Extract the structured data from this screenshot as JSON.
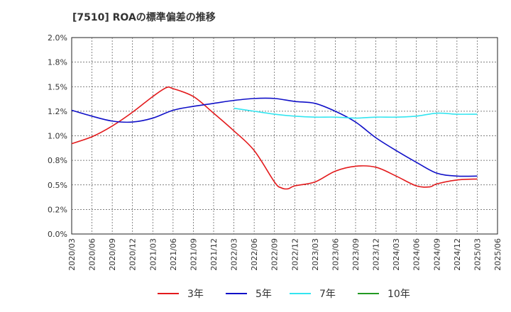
{
  "chart_data": {
    "type": "line",
    "title": "[7510]  ROAの標準偏差の推移",
    "xlabel": "",
    "ylabel": "",
    "ylim": [
      0.0,
      2.0
    ],
    "y_ticks": [
      "0.0%",
      "0.2%",
      "0.5%",
      "0.8%",
      "1.0%",
      "1.2%",
      "1.5%",
      "1.8%",
      "2.0%"
    ],
    "x_ticks": [
      "2020/03",
      "2020/06",
      "2020/09",
      "2020/12",
      "2021/03",
      "2021/06",
      "2021/09",
      "2021/12",
      "2022/03",
      "2022/06",
      "2022/09",
      "2022/12",
      "2023/03",
      "2023/06",
      "2023/09",
      "2023/12",
      "2024/03",
      "2024/06",
      "2024/09",
      "2024/12",
      "2025/03",
      "2025/06"
    ],
    "grid": true,
    "legend_position": "bottom",
    "series": [
      {
        "name": "3年",
        "color": "#e31a1c",
        "points": [
          [
            "2020/03",
            0.92
          ],
          [
            "2020/06",
            0.99
          ],
          [
            "2020/09",
            1.1
          ],
          [
            "2020/12",
            1.24
          ],
          [
            "2021/03",
            1.4
          ],
          [
            "2021/05",
            1.49
          ],
          [
            "2021/06",
            1.48
          ],
          [
            "2021/09",
            1.4
          ],
          [
            "2021/12",
            1.23
          ],
          [
            "2022/03",
            1.05
          ],
          [
            "2022/06",
            0.85
          ],
          [
            "2022/09",
            0.53
          ],
          [
            "2022/10",
            0.47
          ],
          [
            "2022/11",
            0.46
          ],
          [
            "2022/12",
            0.49
          ],
          [
            "2023/03",
            0.53
          ],
          [
            "2023/06",
            0.64
          ],
          [
            "2023/09",
            0.69
          ],
          [
            "2023/12",
            0.68
          ],
          [
            "2024/03",
            0.59
          ],
          [
            "2024/06",
            0.49
          ],
          [
            "2024/08",
            0.48
          ],
          [
            "2024/09",
            0.51
          ],
          [
            "2024/12",
            0.55
          ],
          [
            "2025/03",
            0.56
          ]
        ]
      },
      {
        "name": "5年",
        "color": "#1010c8",
        "points": [
          [
            "2020/03",
            1.26
          ],
          [
            "2020/06",
            1.2
          ],
          [
            "2020/09",
            1.15
          ],
          [
            "2020/12",
            1.14
          ],
          [
            "2021/03",
            1.18
          ],
          [
            "2021/06",
            1.26
          ],
          [
            "2021/09",
            1.3
          ],
          [
            "2021/12",
            1.33
          ],
          [
            "2022/03",
            1.36
          ],
          [
            "2022/06",
            1.38
          ],
          [
            "2022/09",
            1.38
          ],
          [
            "2022/12",
            1.35
          ],
          [
            "2023/03",
            1.33
          ],
          [
            "2023/06",
            1.25
          ],
          [
            "2023/09",
            1.14
          ],
          [
            "2023/12",
            0.98
          ],
          [
            "2024/03",
            0.85
          ],
          [
            "2024/06",
            0.73
          ],
          [
            "2024/09",
            0.62
          ],
          [
            "2024/12",
            0.59
          ],
          [
            "2025/03",
            0.59
          ]
        ]
      },
      {
        "name": "7年",
        "color": "#33e5f0",
        "points": [
          [
            "2022/03",
            1.28
          ],
          [
            "2022/06",
            1.25
          ],
          [
            "2022/09",
            1.22
          ],
          [
            "2022/12",
            1.2
          ],
          [
            "2023/03",
            1.19
          ],
          [
            "2023/06",
            1.19
          ],
          [
            "2023/09",
            1.18
          ],
          [
            "2023/12",
            1.19
          ],
          [
            "2024/03",
            1.19
          ],
          [
            "2024/06",
            1.2
          ],
          [
            "2024/09",
            1.23
          ],
          [
            "2024/12",
            1.22
          ],
          [
            "2025/03",
            1.22
          ]
        ]
      },
      {
        "name": "10年",
        "color": "#229922",
        "points": []
      }
    ]
  }
}
